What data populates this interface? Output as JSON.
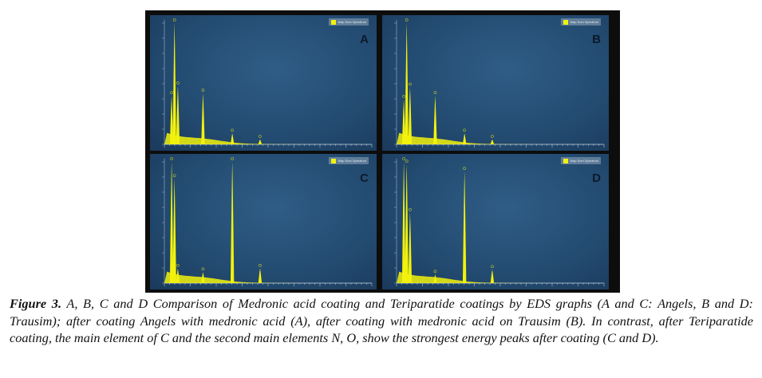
{
  "figure": {
    "panels": [
      {
        "letter": "A",
        "legend": "Map Sum Spectrum"
      },
      {
        "letter": "B",
        "legend": "Map Sum Spectrum"
      },
      {
        "letter": "C",
        "legend": "Map Sum Spectrum"
      },
      {
        "letter": "D",
        "legend": "Map Sum Spectrum"
      }
    ],
    "peak_color": "#f2f20c",
    "background_color": "#244c72"
  },
  "chart_data": [
    {
      "type": "line",
      "panel": "A",
      "x": [
        0.28,
        0.39,
        0.52,
        1.49,
        2.62,
        3.69
      ],
      "values": [
        40,
        100,
        48,
        42,
        9,
        4
      ]
    },
    {
      "type": "line",
      "panel": "B",
      "x": [
        0.28,
        0.39,
        0.52,
        1.49,
        2.62,
        3.69
      ],
      "values": [
        37,
        100,
        47,
        40,
        9,
        4
      ]
    },
    {
      "type": "line",
      "panel": "C",
      "x": [
        0.28,
        0.39,
        0.52,
        1.49,
        2.62,
        3.69
      ],
      "values": [
        100,
        86,
        12,
        9,
        100,
        12
      ]
    },
    {
      "type": "line",
      "panel": "D",
      "x": [
        0.28,
        0.39,
        0.52,
        1.49,
        2.62,
        3.69
      ],
      "values": [
        100,
        98,
        58,
        7,
        92,
        11
      ]
    }
  ],
  "caption": {
    "label": "Figure 3.",
    "text": " A, B, C and D Comparison of Medronic acid coating and Teriparatide coatings by EDS graphs (A and C: Angels, B and D: Trausim); after coating Angels with medronic acid (A), after coating with medronic acid on Trausim (B). In contrast, after Teriparatide coating, the main element of C and the second main elements N, O, show the strongest energy peaks after coating (C and D)."
  }
}
